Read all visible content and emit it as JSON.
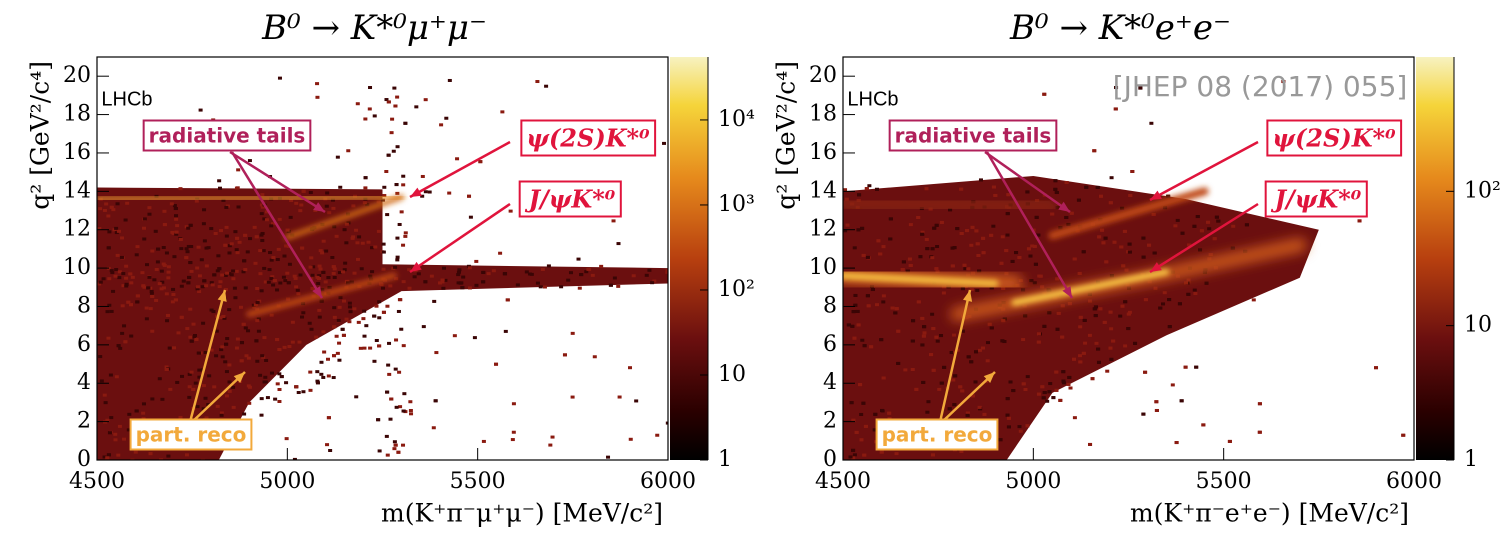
{
  "chart_data": [
    {
      "type": "hist2d",
      "title": "B⁰ → K*⁰μ⁺μ⁻",
      "x_label": "m(K⁺π⁻μ⁺μ⁻) [MeV/c²]",
      "y_label": "q² [GeV²/c⁴]",
      "xlim": [
        4500,
        6000
      ],
      "xticks": [
        4500,
        5000,
        5500,
        6000
      ],
      "ylim": [
        0,
        21
      ],
      "yticks": [
        0,
        2,
        4,
        6,
        8,
        10,
        12,
        14,
        16,
        18,
        20
      ],
      "clim": [
        1,
        55000
      ],
      "color_scale": "log",
      "cticks": [
        1,
        10,
        {
          "value": 100,
          "label": "10²"
        },
        {
          "value": 1000,
          "label": "10³"
        },
        {
          "value": 10000,
          "label": "10⁴"
        }
      ],
      "annotations": [
        "LHCb",
        "radiative tails",
        "ψ(2S)K*⁰",
        "J/ψK*⁰",
        "part. reco"
      ]
    },
    {
      "type": "hist2d",
      "title": "B⁰ → K*⁰e⁺e⁻",
      "x_label": "m(K⁺π⁻e⁺e⁻) [MeV/c²]",
      "y_label": "q² [GeV²/c⁴]",
      "xlim": [
        4500,
        6000
      ],
      "xticks": [
        4500,
        5000,
        5500,
        6000
      ],
      "ylim": [
        0,
        21
      ],
      "yticks": [
        0,
        2,
        4,
        6,
        8,
        10,
        12,
        14,
        16,
        18,
        20
      ],
      "clim": [
        1,
        1000
      ],
      "color_scale": "log",
      "cticks": [
        1,
        10,
        {
          "value": 100,
          "label": "10²"
        }
      ],
      "annotations": [
        "LHCb",
        "radiative tails",
        "ψ(2S)K*⁰",
        "J/ψK*⁰",
        "part. reco",
        "[JHEP 08 (2017) 055]"
      ]
    }
  ]
}
